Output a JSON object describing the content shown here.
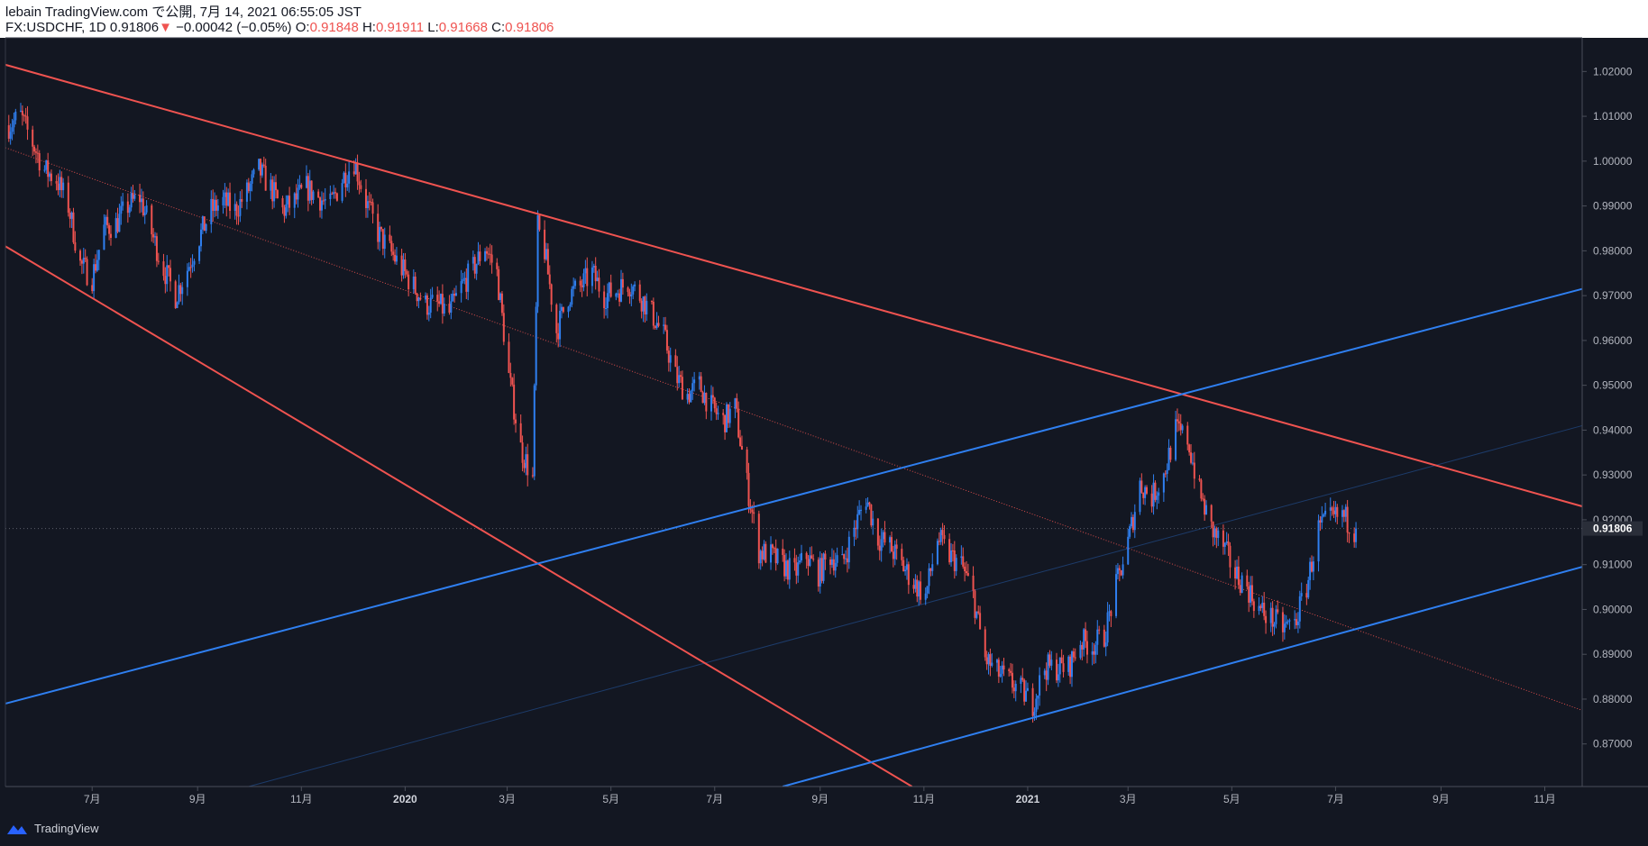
{
  "header": {
    "line1": "lebain TradingView.com で公開, 7月 14, 2021 06:55:05 JST",
    "symbol_interval_price": "FX:USDCHF, 1D 0.91806",
    "change_arrow": "▼",
    "change_text": "−0.00042 (−0.05%)",
    "o_label": "O:",
    "o_value": "0.91848",
    "h_label": "H:",
    "h_value": "0.91911",
    "l_label": "L:",
    "l_value": "0.91668",
    "c_label": "C:",
    "c_value": "0.91806"
  },
  "footer": {
    "brand": "TradingView"
  },
  "colors": {
    "background": "#131722",
    "up": "#2f7ff0",
    "down": "#ef5350",
    "text": "#b2b5be",
    "grid": "#2a2e39",
    "channel_red": "#ef5350",
    "channel_blue": "#2f7ff0"
  },
  "chart_data": {
    "type": "candlestick",
    "symbol": "FX:USDCHF",
    "interval": "1D",
    "last_price": 0.91806,
    "last_price_label": "0.91806",
    "y_ticks": [
      "1.02000",
      "1.01000",
      "1.00000",
      "0.99000",
      "0.98000",
      "0.97000",
      "0.96000",
      "0.95000",
      "0.94000",
      "0.93000",
      "0.92000",
      "0.91000",
      "0.90000",
      "0.89000",
      "0.88000",
      "0.87000"
    ],
    "y_tick_values": [
      1.02,
      1.01,
      1.0,
      0.99,
      0.98,
      0.97,
      0.96,
      0.95,
      0.94,
      0.93,
      0.92,
      0.91,
      0.9,
      0.89,
      0.88,
      0.87
    ],
    "ylim": [
      0.8605,
      1.0275
    ],
    "xlim": [
      "2019-05-11",
      "2021-11-23"
    ],
    "x_ticks": [
      {
        "date": "2019-07-01",
        "label": "7月",
        "bold": false
      },
      {
        "date": "2019-09-01",
        "label": "9月",
        "bold": false
      },
      {
        "date": "2019-11-01",
        "label": "11月",
        "bold": false
      },
      {
        "date": "2020-01-01",
        "label": "2020",
        "bold": true
      },
      {
        "date": "2020-03-01",
        "label": "3月",
        "bold": false
      },
      {
        "date": "2020-05-01",
        "label": "5月",
        "bold": false
      },
      {
        "date": "2020-07-01",
        "label": "7月",
        "bold": false
      },
      {
        "date": "2020-09-01",
        "label": "9月",
        "bold": false
      },
      {
        "date": "2020-11-01",
        "label": "11月",
        "bold": false
      },
      {
        "date": "2021-01-01",
        "label": "2021",
        "bold": true
      },
      {
        "date": "2021-03-01",
        "label": "3月",
        "bold": false
      },
      {
        "date": "2021-05-01",
        "label": "5月",
        "bold": false
      },
      {
        "date": "2021-07-01",
        "label": "7月",
        "bold": false
      },
      {
        "date": "2021-09-01",
        "label": "9月",
        "bold": false
      },
      {
        "date": "2021-11-01",
        "label": "11月",
        "bold": false
      }
    ],
    "price_path": [
      [
        "2019-05-13",
        1.008
      ],
      [
        "2019-05-20",
        1.01
      ],
      [
        "2019-05-27",
        1.004
      ],
      [
        "2019-06-03",
        0.998
      ],
      [
        "2019-06-10",
        0.996
      ],
      [
        "2019-06-17",
        0.99
      ],
      [
        "2019-06-24",
        0.977
      ],
      [
        "2019-07-01",
        0.974
      ],
      [
        "2019-07-08",
        0.985
      ],
      [
        "2019-07-15",
        0.986
      ],
      [
        "2019-07-22",
        0.99
      ],
      [
        "2019-07-29",
        0.992
      ],
      [
        "2019-08-05",
        0.984
      ],
      [
        "2019-08-12",
        0.976
      ],
      [
        "2019-08-19",
        0.97
      ],
      [
        "2019-08-26",
        0.976
      ],
      [
        "2019-09-02",
        0.983
      ],
      [
        "2019-09-09",
        0.989
      ],
      [
        "2019-09-16",
        0.991
      ],
      [
        "2019-09-23",
        0.989
      ],
      [
        "2019-09-30",
        0.993
      ],
      [
        "2019-10-07",
        0.998
      ],
      [
        "2019-10-14",
        0.994
      ],
      [
        "2019-10-21",
        0.989
      ],
      [
        "2019-10-28",
        0.991
      ],
      [
        "2019-11-04",
        0.994
      ],
      [
        "2019-11-11",
        0.992
      ],
      [
        "2019-11-18",
        0.99
      ],
      [
        "2019-11-25",
        0.996
      ],
      [
        "2019-12-02",
        1.0
      ],
      [
        "2019-12-09",
        0.991
      ],
      [
        "2019-12-16",
        0.984
      ],
      [
        "2019-12-23",
        0.98
      ],
      [
        "2019-12-30",
        0.976
      ],
      [
        "2020-01-06",
        0.972
      ],
      [
        "2020-01-13",
        0.968
      ],
      [
        "2020-01-20",
        0.968
      ],
      [
        "2020-01-27",
        0.966
      ],
      [
        "2020-02-03",
        0.972
      ],
      [
        "2020-02-10",
        0.976
      ],
      [
        "2020-02-17",
        0.981
      ],
      [
        "2020-02-24",
        0.975
      ],
      [
        "2020-03-02",
        0.952
      ],
      [
        "2020-03-09",
        0.936
      ],
      [
        "2020-03-16",
        0.929
      ],
      [
        "2020-03-19",
        0.985
      ],
      [
        "2020-03-23",
        0.98
      ],
      [
        "2020-03-30",
        0.962
      ],
      [
        "2020-04-06",
        0.97
      ],
      [
        "2020-04-13",
        0.972
      ],
      [
        "2020-04-20",
        0.975
      ],
      [
        "2020-04-27",
        0.97
      ],
      [
        "2020-05-04",
        0.971
      ],
      [
        "2020-05-11",
        0.973
      ],
      [
        "2020-05-18",
        0.97
      ],
      [
        "2020-05-25",
        0.966
      ],
      [
        "2020-06-01",
        0.961
      ],
      [
        "2020-06-08",
        0.952
      ],
      [
        "2020-06-15",
        0.948
      ],
      [
        "2020-06-22",
        0.95
      ],
      [
        "2020-06-29",
        0.945
      ],
      [
        "2020-07-06",
        0.942
      ],
      [
        "2020-07-13",
        0.945
      ],
      [
        "2020-07-20",
        0.928
      ],
      [
        "2020-07-27",
        0.913
      ],
      [
        "2020-08-03",
        0.912
      ],
      [
        "2020-08-10",
        0.91
      ],
      [
        "2020-08-17",
        0.908
      ],
      [
        "2020-08-24",
        0.912
      ],
      [
        "2020-08-31",
        0.908
      ],
      [
        "2020-09-07",
        0.912
      ],
      [
        "2020-09-14",
        0.91
      ],
      [
        "2020-09-21",
        0.918
      ],
      [
        "2020-09-28",
        0.925
      ],
      [
        "2020-10-05",
        0.916
      ],
      [
        "2020-10-12",
        0.914
      ],
      [
        "2020-10-19",
        0.91
      ],
      [
        "2020-10-26",
        0.906
      ],
      [
        "2020-11-02",
        0.903
      ],
      [
        "2020-11-09",
        0.916
      ],
      [
        "2020-11-16",
        0.912
      ],
      [
        "2020-11-23",
        0.91
      ],
      [
        "2020-11-30",
        0.903
      ],
      [
        "2020-12-07",
        0.889
      ],
      [
        "2020-12-14",
        0.886
      ],
      [
        "2020-12-21",
        0.884
      ],
      [
        "2020-12-28",
        0.882
      ],
      [
        "2021-01-04",
        0.879
      ],
      [
        "2021-01-11",
        0.887
      ],
      [
        "2021-01-18",
        0.887
      ],
      [
        "2021-01-25",
        0.887
      ],
      [
        "2021-02-01",
        0.893
      ],
      [
        "2021-02-08",
        0.892
      ],
      [
        "2021-02-15",
        0.894
      ],
      [
        "2021-02-22",
        0.905
      ],
      [
        "2021-03-01",
        0.915
      ],
      [
        "2021-03-08",
        0.928
      ],
      [
        "2021-03-15",
        0.925
      ],
      [
        "2021-03-22",
        0.93
      ],
      [
        "2021-03-29",
        0.94
      ],
      [
        "2021-04-05",
        0.938
      ],
      [
        "2021-04-12",
        0.926
      ],
      [
        "2021-04-19",
        0.918
      ],
      [
        "2021-04-26",
        0.914
      ],
      [
        "2021-05-03",
        0.908
      ],
      [
        "2021-05-10",
        0.905
      ],
      [
        "2021-05-17",
        0.9
      ],
      [
        "2021-05-24",
        0.898
      ],
      [
        "2021-05-31",
        0.896
      ],
      [
        "2021-06-07",
        0.897
      ],
      [
        "2021-06-14",
        0.905
      ],
      [
        "2021-06-21",
        0.918
      ],
      [
        "2021-06-28",
        0.92
      ],
      [
        "2021-07-05",
        0.921
      ],
      [
        "2021-07-12",
        0.918
      ]
    ],
    "trendlines": [
      {
        "color": "red",
        "style": "solid",
        "from": [
          "2019-05-11",
          1.0215
        ],
        "to": [
          "2021-11-23",
          0.923
        ]
      },
      {
        "color": "red",
        "style": "solid",
        "from": [
          "2019-05-11",
          0.981
        ],
        "to": [
          "2020-10-25",
          0.8605
        ]
      },
      {
        "color": "red",
        "style": "dotted",
        "from": [
          "2019-05-11",
          1.003
        ],
        "to": [
          "2021-11-23",
          0.8775
        ]
      },
      {
        "color": "blue",
        "style": "solid",
        "from": [
          "2019-05-11",
          0.879
        ],
        "to": [
          "2021-11-23",
          0.9715
        ]
      },
      {
        "color": "blue",
        "style": "solid",
        "from": [
          "2020-08-10",
          0.8605
        ],
        "to": [
          "2021-11-23",
          0.9095
        ]
      },
      {
        "color": "blue",
        "style": "thin",
        "from": [
          "2019-10-01",
          0.8605
        ],
        "to": [
          "2021-11-23",
          0.941
        ]
      }
    ]
  }
}
